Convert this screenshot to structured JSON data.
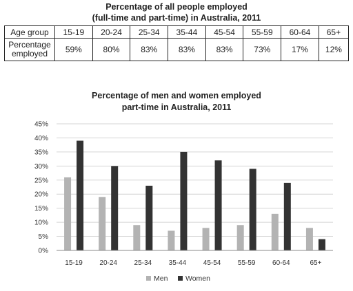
{
  "table": {
    "title_line1": "Percentage of all people employed",
    "title_line2": "(full-time and part-time) in Australia, 2011",
    "row1_label": "Age group",
    "row2_label_line1": "Percentage",
    "row2_label_line2": "employed",
    "age_groups": [
      "15-19",
      "20-24",
      "25-34",
      "35-44",
      "45-54",
      "55-59",
      "60-64",
      "65+"
    ],
    "percentages": [
      "59%",
      "80%",
      "83%",
      "83%",
      "83%",
      "73%",
      "17%",
      "12%"
    ]
  },
  "chart_data": {
    "type": "bar",
    "title_line1": "Percentage of men and women employed",
    "title_line2": "part-time in Australia, 2011",
    "categories": [
      "15-19",
      "20-24",
      "25-34",
      "35-44",
      "45-54",
      "55-59",
      "60-64",
      "65+"
    ],
    "series": [
      {
        "name": "Men",
        "color": "#b3b3b3",
        "values": [
          26,
          19,
          9,
          7,
          8,
          9,
          13,
          8
        ]
      },
      {
        "name": "Women",
        "color": "#333333",
        "values": [
          39,
          30,
          23,
          35,
          32,
          29,
          24,
          4
        ]
      }
    ],
    "ylim": [
      0,
      45
    ],
    "yticks": [
      "0%",
      "5%",
      "10%",
      "15%",
      "20%",
      "25%",
      "30%",
      "35%",
      "40%",
      "45%"
    ],
    "grid": true,
    "legend_position": "bottom"
  }
}
